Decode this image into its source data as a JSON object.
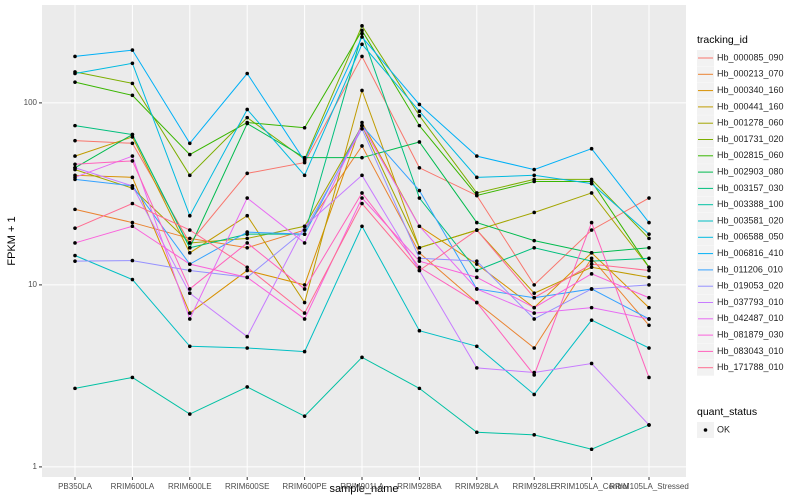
{
  "chart_data": {
    "type": "line",
    "x_label": "sample_name",
    "y_label": "FPKM + 1",
    "categories": [
      "PB350LA",
      "RRIM600LA",
      "RRIM600LE",
      "RRIM600SE",
      "RRIM600PE",
      "RRIM901LA",
      "RRIM928BA",
      "RRIM928LA",
      "RRIM928LE",
      "RRIM105LA_Control",
      "RRIM105LA_Stressed"
    ],
    "ylim": [
      0.88,
      345
    ],
    "yticks": [
      1,
      10,
      100
    ],
    "log_y": true,
    "grid": true,
    "legend": {
      "title": "tracking_id",
      "position": "right"
    },
    "point_legend": {
      "title": "quant_status",
      "entries": [
        "OK"
      ],
      "color": "#000000"
    },
    "series": [
      {
        "name": "Hb_000085_090",
        "color": "#F8766D",
        "values": [
          62,
          60,
          17,
          41,
          47,
          180,
          44,
          31,
          10,
          20,
          30
        ]
      },
      {
        "name": "Hb_000213_070",
        "color": "#EA8331",
        "values": [
          26,
          22,
          18,
          16,
          20,
          58,
          15,
          8,
          4.5,
          14,
          6
        ]
      },
      {
        "name": "Hb_000340_160",
        "color": "#D89000",
        "values": [
          40,
          39,
          7,
          12,
          10,
          78,
          21,
          13,
          7.5,
          15,
          7.5
        ]
      },
      {
        "name": "Hb_000441_160",
        "color": "#C09B00",
        "values": [
          51,
          65,
          15,
          24,
          8,
          117,
          16,
          20,
          9,
          12.5,
          11
        ]
      },
      {
        "name": "Hb_001278_060",
        "color": "#A3A500",
        "values": [
          43,
          34,
          17,
          18,
          21,
          75,
          16,
          20,
          25,
          32,
          12.5
        ]
      },
      {
        "name": "Hb_001731_020",
        "color": "#7CAE00",
        "values": [
          148,
          128,
          40,
          83,
          49,
          265,
          85,
          32,
          38,
          38,
          18
        ]
      },
      {
        "name": "Hb_002815_060",
        "color": "#39B600",
        "values": [
          130,
          110,
          52,
          78,
          73,
          250,
          75,
          31,
          37,
          37,
          12.5
        ]
      },
      {
        "name": "Hb_002903_080",
        "color": "#00BB4E",
        "values": [
          44,
          67,
          16,
          77,
          50,
          50,
          61,
          22,
          17.5,
          15,
          16
        ]
      },
      {
        "name": "Hb_003157_030",
        "color": "#00BF7D",
        "values": [
          75,
          67,
          16,
          19,
          19,
          240,
          30,
          12,
          16,
          13.5,
          14
        ]
      },
      {
        "name": "Hb_003388_100",
        "color": "#00C1A3",
        "values": [
          2.7,
          3.1,
          1.95,
          2.75,
          1.9,
          4.0,
          2.7,
          1.55,
          1.5,
          1.25,
          1.7
        ]
      },
      {
        "name": "Hb_003581_020",
        "color": "#00BFC4",
        "values": [
          14.5,
          10.7,
          4.6,
          4.5,
          4.3,
          21,
          5.6,
          4.6,
          2.5,
          6.4,
          4.5
        ]
      },
      {
        "name": "Hb_006588_050",
        "color": "#00BAE0",
        "values": [
          145,
          165,
          24,
          92,
          40,
          210,
          90,
          39,
          40,
          36,
          19
        ]
      },
      {
        "name": "Hb_006816_410",
        "color": "#00B0F6",
        "values": [
          180,
          195,
          60,
          145,
          48,
          230,
          98,
          51,
          43,
          56,
          22
        ]
      },
      {
        "name": "Hb_011206_010",
        "color": "#35A2FF",
        "values": [
          38,
          35,
          13,
          19.5,
          19,
          75,
          33,
          9.5,
          8.5,
          9.5,
          6.5
        ]
      },
      {
        "name": "Hb_019053_020",
        "color": "#9590FF",
        "values": [
          13.5,
          13.6,
          12,
          11,
          20,
          72,
          14,
          13.5,
          6.5,
          9.5,
          10
        ]
      },
      {
        "name": "Hb_037793_010",
        "color": "#C77CFF",
        "values": [
          44,
          35,
          9,
          5.2,
          21,
          40,
          12,
          3.5,
          3.3,
          3.7,
          1.7
        ]
      },
      {
        "name": "Hb_042487_010",
        "color": "#E76BF3",
        "values": [
          39,
          51,
          6.5,
          30,
          17,
          75,
          21,
          9.5,
          7,
          7.5,
          6.5
        ]
      },
      {
        "name": "Hb_081879_030",
        "color": "#FA62DB",
        "values": [
          17,
          21,
          13,
          11,
          6.5,
          30,
          13.5,
          11,
          7.5,
          11.5,
          8.5
        ]
      },
      {
        "name": "Hb_083043_010",
        "color": "#FF62BC",
        "values": [
          46,
          48,
          9.5,
          17,
          9.5,
          32,
          12.5,
          8,
          3.2,
          22,
          3.1
        ]
      },
      {
        "name": "Hb_171788_010",
        "color": "#FF6C91",
        "values": [
          20.5,
          28,
          20,
          12.5,
          7,
          28,
          12,
          20,
          8.5,
          13,
          12
        ]
      }
    ]
  }
}
